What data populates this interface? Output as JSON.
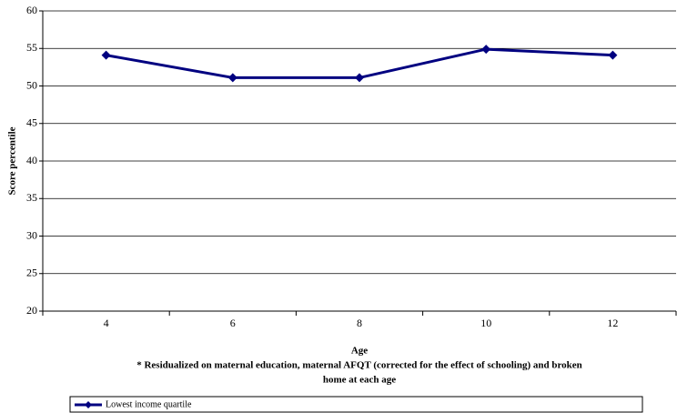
{
  "chart_data": {
    "type": "line",
    "y_label": "Score percentile",
    "x_label": "Age",
    "note": [
      "* Residualized on maternal education, maternal AFQT (corrected for the effect of schooling) and broken",
      "home at each age"
    ],
    "categories": [
      "4",
      "6",
      "8",
      "10",
      "12"
    ],
    "series": [
      {
        "name": "Lowest income quartile",
        "color": "#000080",
        "values": [
          54.1,
          51.1,
          51.1,
          54.9,
          54.1
        ]
      }
    ],
    "ylim": [
      20,
      60
    ],
    "yticks": [
      20,
      25,
      30,
      35,
      40,
      45,
      50,
      55,
      60
    ],
    "grid": true,
    "legend": "bottom"
  }
}
